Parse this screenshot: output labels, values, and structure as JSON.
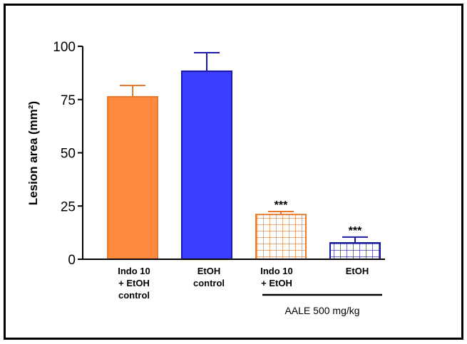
{
  "chart_data": {
    "type": "bar",
    "title": "",
    "xlabel": "",
    "ylabel": "Lesion area (mm²)",
    "ylim": [
      0,
      100
    ],
    "yticks": [
      0,
      25,
      50,
      75,
      100
    ],
    "ytick_labels": [
      "0",
      "25",
      "50",
      "75",
      "100"
    ],
    "grid": false,
    "categories": [
      [
        "Indo 10",
        "+ EtOH",
        "control"
      ],
      [
        "EtOH",
        "control"
      ],
      [
        "Indo 10",
        "+ EtOH"
      ],
      [
        "EtOH"
      ]
    ],
    "values": [
      76.3,
      88.3,
      21.0,
      7.7
    ],
    "errors": [
      5.3,
      8.7,
      1.4,
      2.7
    ],
    "fills": [
      "solid",
      "solid",
      "grid-hatch",
      "grid-hatch"
    ],
    "colors": [
      "#ff8a3d",
      "#3d3dff",
      "#e87a30",
      "#1a1aa0"
    ],
    "edge_colors": [
      "#e87a30",
      "#1a1ab0",
      "#e87a30",
      "#1a1aa0"
    ],
    "significance": [
      "",
      "",
      "***",
      "***"
    ],
    "group_annotation": {
      "label": "AALE 500 mg/kg",
      "spans_categories": [
        2,
        3
      ]
    },
    "legend": "none"
  }
}
